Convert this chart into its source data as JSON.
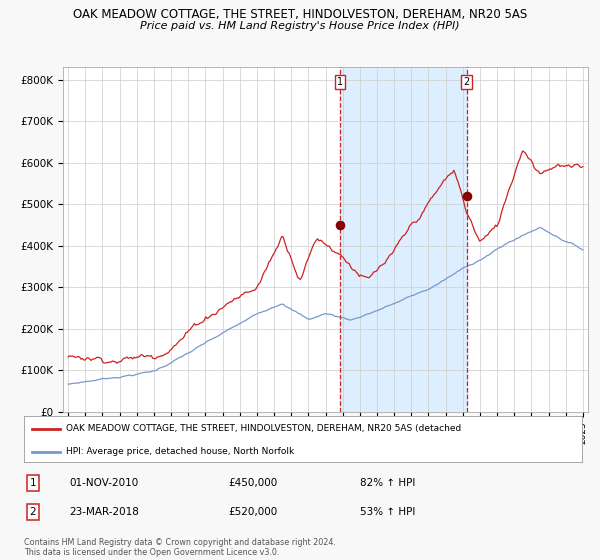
{
  "title1": "OAK MEADOW COTTAGE, THE STREET, HINDOLVESTON, DEREHAM, NR20 5AS",
  "title2": "Price paid vs. HM Land Registry's House Price Index (HPI)",
  "bg_color": "#f8f8f8",
  "plot_bg": "#ffffff",
  "red_color": "#cc2222",
  "blue_color": "#7799cc",
  "shade_color": "#ddeeff",
  "grid_color": "#cccccc",
  "yticks": [
    0,
    100000,
    200000,
    300000,
    400000,
    500000,
    600000,
    700000,
    800000
  ],
  "ytick_labels": [
    "£0",
    "£100K",
    "£200K",
    "£300K",
    "£400K",
    "£500K",
    "£600K",
    "£700K",
    "£800K"
  ],
  "ylim": [
    0,
    830000
  ],
  "xlim_left": 1994.7,
  "xlim_right": 2025.3,
  "sale1_x": 2010.833,
  "sale1_y": 450000,
  "sale2_x": 2018.23,
  "sale2_y": 520000,
  "legend_line1": "OAK MEADOW COTTAGE, THE STREET, HINDOLVESTON, DEREHAM, NR20 5AS (detached",
  "legend_line2": "HPI: Average price, detached house, North Norfolk",
  "table_row1": [
    "1",
    "01-NOV-2010",
    "£450,000",
    "82% ↑ HPI"
  ],
  "table_row2": [
    "2",
    "23-MAR-2018",
    "£520,000",
    "53% ↑ HPI"
  ],
  "footer": "Contains HM Land Registry data © Crown copyright and database right 2024.\nThis data is licensed under the Open Government Licence v3.0."
}
